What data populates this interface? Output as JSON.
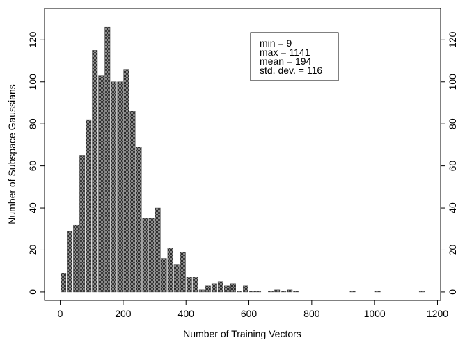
{
  "chart_data": {
    "type": "bar",
    "xlabel": "Number of Training Vectors",
    "ylabel": "Number of Subspace Gaussians",
    "xlim": [
      -50,
      1210
    ],
    "ylim": [
      -4,
      135
    ],
    "xticks": [
      "0",
      "200",
      "400",
      "600",
      "800",
      "1000",
      "1200"
    ],
    "yticks": [
      "0",
      "20",
      "40",
      "60",
      "80",
      "100",
      "120"
    ],
    "xtick_values": [
      0,
      200,
      400,
      600,
      800,
      1000,
      1200
    ],
    "ytick_values": [
      0,
      20,
      40,
      60,
      80,
      100,
      120
    ],
    "bin_width": 20,
    "bar_color": "#555555",
    "bins": [
      {
        "x": 10,
        "value": 9
      },
      {
        "x": 30,
        "value": 29
      },
      {
        "x": 50,
        "value": 32
      },
      {
        "x": 70,
        "value": 65
      },
      {
        "x": 90,
        "value": 82
      },
      {
        "x": 110,
        "value": 115
      },
      {
        "x": 130,
        "value": 103
      },
      {
        "x": 150,
        "value": 126
      },
      {
        "x": 170,
        "value": 100
      },
      {
        "x": 190,
        "value": 100
      },
      {
        "x": 210,
        "value": 106
      },
      {
        "x": 230,
        "value": 86
      },
      {
        "x": 250,
        "value": 69
      },
      {
        "x": 270,
        "value": 35
      },
      {
        "x": 290,
        "value": 35
      },
      {
        "x": 310,
        "value": 40
      },
      {
        "x": 330,
        "value": 16
      },
      {
        "x": 350,
        "value": 21
      },
      {
        "x": 370,
        "value": 13
      },
      {
        "x": 390,
        "value": 19
      },
      {
        "x": 410,
        "value": 7
      },
      {
        "x": 430,
        "value": 7
      },
      {
        "x": 450,
        "value": 1
      },
      {
        "x": 470,
        "value": 3
      },
      {
        "x": 490,
        "value": 4
      },
      {
        "x": 510,
        "value": 5
      },
      {
        "x": 530,
        "value": 3
      },
      {
        "x": 550,
        "value": 4
      },
      {
        "x": 570,
        "value": 0.5
      },
      {
        "x": 590,
        "value": 3
      },
      {
        "x": 610,
        "value": 0.5
      },
      {
        "x": 630,
        "value": 0.5
      },
      {
        "x": 670,
        "value": 0.5
      },
      {
        "x": 690,
        "value": 1
      },
      {
        "x": 710,
        "value": 0.5
      },
      {
        "x": 730,
        "value": 1
      },
      {
        "x": 750,
        "value": 0.5
      },
      {
        "x": 930,
        "value": 0.5
      },
      {
        "x": 1010,
        "value": 0.5
      },
      {
        "x": 1150,
        "value": 0.5
      }
    ],
    "annotations": [
      "min = 9",
      "max = 1141",
      "mean = 194",
      "std. dev. = 116"
    ]
  }
}
